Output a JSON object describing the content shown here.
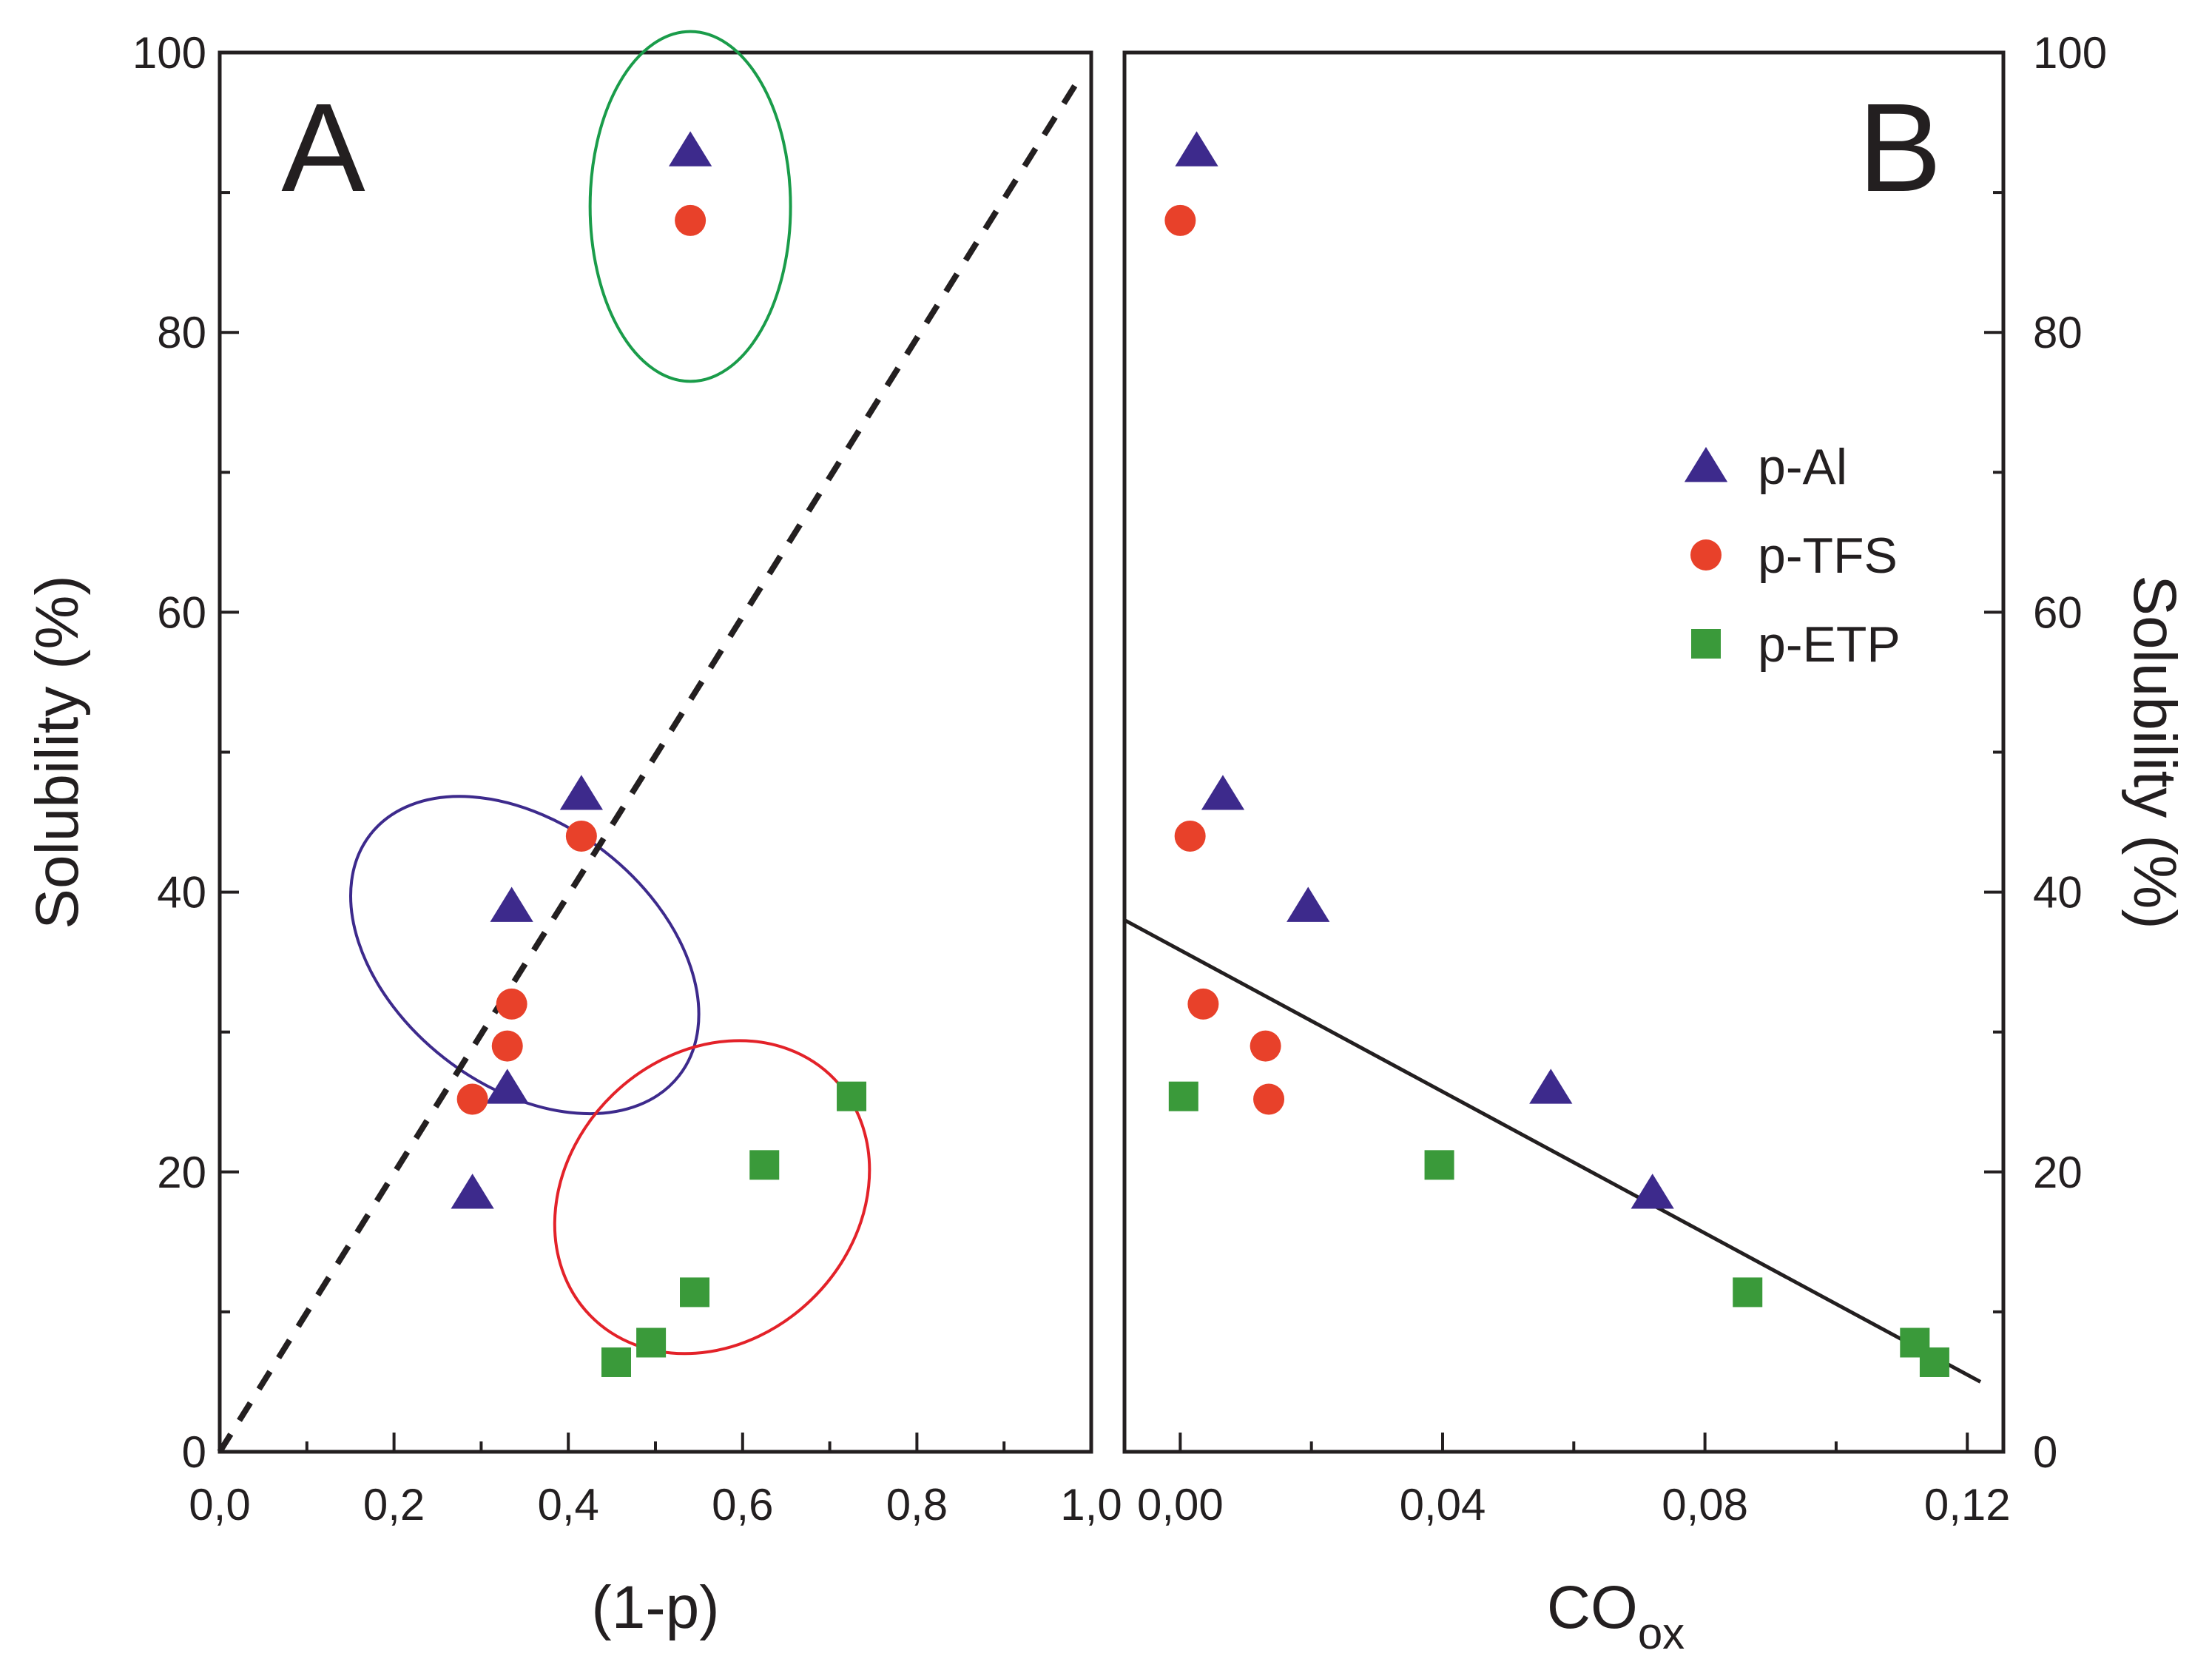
{
  "chart_data": [
    {
      "id": "A",
      "type": "scatter",
      "panel_label": "A",
      "xlabel": "(1-p)",
      "ylabel": "Solubility (%)",
      "xlim": [
        0,
        1
      ],
      "ylim": [
        0,
        100
      ],
      "x_ticks": [
        0,
        0.2,
        0.4,
        0.6,
        0.8,
        1.0
      ],
      "x_tick_labels": [
        "0,0",
        "0,2",
        "0,4",
        "0,6",
        "0,8",
        "1,0"
      ],
      "y_ticks": [
        0,
        20,
        40,
        60,
        80,
        100
      ],
      "y_tick_labels": [
        "0",
        "20",
        "40",
        "60",
        "80",
        "100"
      ],
      "grid": false,
      "series": [
        {
          "name": "p-Al",
          "marker": "triangle",
          "color": "#3d2a8c",
          "points": [
            [
              0.54,
              93
            ],
            [
              0.415,
              47
            ],
            [
              0.335,
              39
            ],
            [
              0.33,
              26
            ],
            [
              0.29,
              18.5
            ]
          ]
        },
        {
          "name": "p-TFS",
          "marker": "circle",
          "color": "#e8412a",
          "points": [
            [
              0.54,
              88
            ],
            [
              0.415,
              44
            ],
            [
              0.335,
              32
            ],
            [
              0.33,
              29
            ],
            [
              0.29,
              25.2
            ]
          ]
        },
        {
          "name": "p-ETP",
          "marker": "square",
          "color": "#3a9a3a",
          "points": [
            [
              0.725,
              25.4
            ],
            [
              0.625,
              20.5
            ],
            [
              0.545,
              11.4
            ],
            [
              0.495,
              7.8
            ],
            [
              0.455,
              6.4
            ]
          ]
        }
      ],
      "reference_line": {
        "style": "dashed",
        "color": "#231f20",
        "from": [
          0,
          0
        ],
        "to": [
          0.99,
          98.5
        ]
      },
      "groupings": [
        {
          "color": "#1a9c4a",
          "cx": 0.54,
          "cy": 89,
          "rx": 0.115,
          "ry": 12.5,
          "angle": 0
        },
        {
          "color": "#3d2a8c",
          "cx": 0.35,
          "cy": 35.5,
          "rx": 0.15,
          "ry": 14,
          "angle": -52
        },
        {
          "color": "#e32229",
          "cx": 0.565,
          "cy": 18.2,
          "rx": 0.195,
          "ry": 10.2,
          "angle": -44
        }
      ]
    },
    {
      "id": "B",
      "type": "scatter",
      "panel_label": "B",
      "xlabel": "CO",
      "xlabel_sub": "ox",
      "ylabel": "Solubility (%)",
      "xlim": [
        -0.0085,
        0.1255
      ],
      "ylim": [
        0,
        100
      ],
      "x_ticks": [
        0.0,
        0.04,
        0.08,
        0.12
      ],
      "x_tick_labels": [
        "0,00",
        "0,04",
        "0,08",
        "0,12"
      ],
      "y_ticks": [
        0,
        20,
        40,
        60,
        80,
        100
      ],
      "y_tick_labels": [
        "0",
        "20",
        "40",
        "60",
        "80",
        "100"
      ],
      "grid": false,
      "legend": {
        "position": "right",
        "entries": [
          {
            "name": "p-Al",
            "marker": "triangle",
            "color": "#3d2a8c"
          },
          {
            "name": "p-TFS",
            "marker": "circle",
            "color": "#e8412a"
          },
          {
            "name": "p-ETP",
            "marker": "square",
            "color": "#3a9a3a"
          }
        ]
      },
      "series": [
        {
          "name": "p-Al",
          "marker": "triangle",
          "color": "#3d2a8c",
          "points": [
            [
              0.0025,
              93
            ],
            [
              0.0065,
              47
            ],
            [
              0.0195,
              39
            ],
            [
              0.0565,
              26
            ],
            [
              0.072,
              18.5
            ]
          ]
        },
        {
          "name": "p-TFS",
          "marker": "circle",
          "color": "#e8412a",
          "points": [
            [
              0.0,
              88
            ],
            [
              0.0015,
              44
            ],
            [
              0.0035,
              32
            ],
            [
              0.013,
              29
            ],
            [
              0.0135,
              25.2
            ]
          ]
        },
        {
          "name": "p-ETP",
          "marker": "square",
          "color": "#3a9a3a",
          "points": [
            [
              0.0005,
              25.4
            ],
            [
              0.0395,
              20.5
            ],
            [
              0.0865,
              11.4
            ],
            [
              0.112,
              7.8
            ],
            [
              0.115,
              6.4
            ]
          ]
        }
      ],
      "fit_line": {
        "style": "solid",
        "color": "#231f20",
        "from": [
          -0.0085,
          38
        ],
        "to": [
          0.122,
          5
        ]
      }
    }
  ]
}
